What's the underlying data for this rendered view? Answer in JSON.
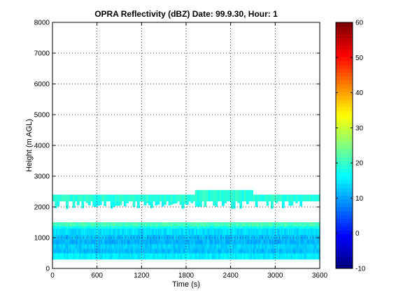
{
  "chart_data": {
    "type": "heatmap",
    "title": "OPRA Reflectivity (dBZ)  Date: 99.9.30, Hour: 1",
    "xlabel": "Time (s)",
    "ylabel": "Height (m AGL)",
    "xlim": [
      0,
      3600
    ],
    "ylim": [
      0,
      8000
    ],
    "xticks": [
      "0",
      "600",
      "1200",
      "1800",
      "2400",
      "3000",
      "3600"
    ],
    "yticks": [
      "0",
      "1000",
      "2000",
      "3000",
      "4000",
      "5000",
      "6000",
      "7000",
      "8000"
    ],
    "grid": true,
    "colorbar": {
      "colormap": "jet",
      "clim": [
        -10,
        60
      ],
      "ticks": [
        "-10",
        "0",
        "10",
        "20",
        "30",
        "40",
        "50",
        "60"
      ]
    },
    "layers": [
      {
        "name": "lower echo layer",
        "x_range": [
          0,
          3600
        ],
        "height_range": [
          300,
          1500
        ],
        "dbz_typical": 12,
        "dbz_range": [
          10,
          22
        ]
      },
      {
        "name": "upper echo layer",
        "x_range": [
          0,
          3600
        ],
        "height_range": [
          2000,
          2400
        ],
        "dbz_typical": 19,
        "dbz_range": [
          17,
          22
        ]
      }
    ]
  }
}
